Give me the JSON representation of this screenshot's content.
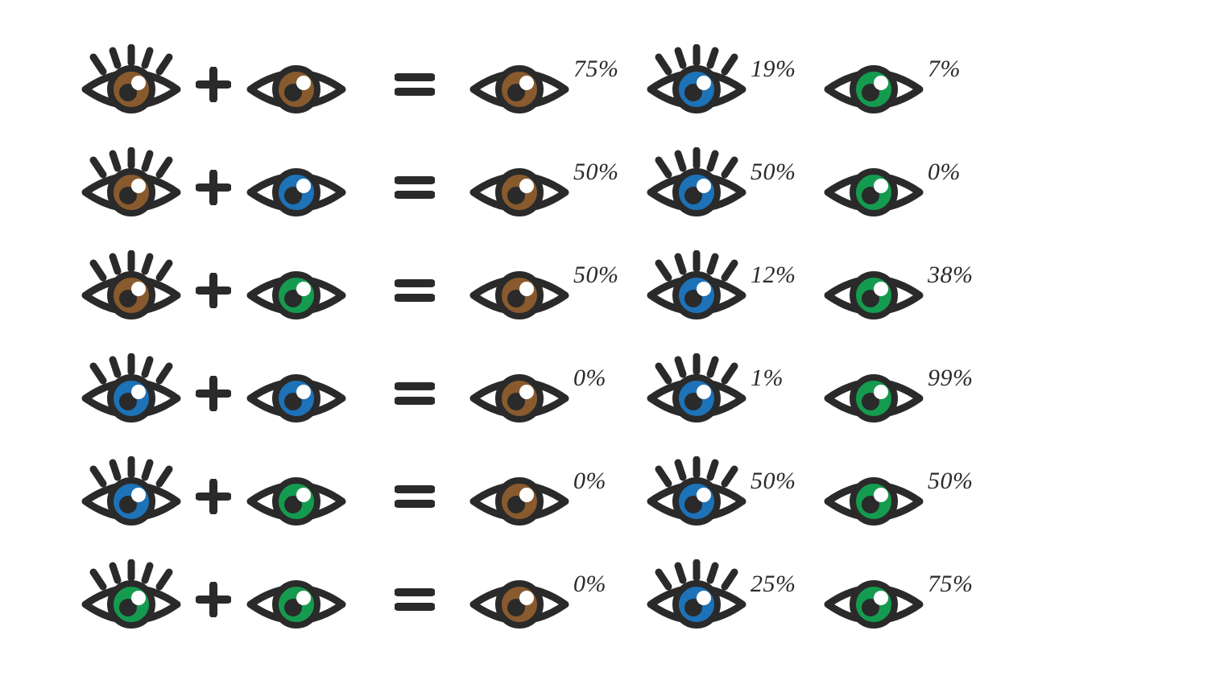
{
  "colors": {
    "outline": "#2a2a2a",
    "brown": "#885a2e",
    "blue": "#1d72b8",
    "green": "#159b4f",
    "white": "#ffffff",
    "text": "#2a2a2a",
    "background": "#ffffff"
  },
  "stroke_width": 9,
  "eye_svg_size": {
    "width": 130,
    "height": 100
  },
  "operator_svg": {
    "plus_size": 44,
    "equals_width": 50,
    "equals_height": 30,
    "stroke": 10
  },
  "percent_font": {
    "size_pt": 30,
    "style": "italic",
    "color": "#2a2a2a"
  },
  "rows": [
    {
      "parent1": {
        "color": "brown",
        "lashes": true
      },
      "parent2": {
        "color": "brown",
        "lashes": false
      },
      "results": [
        {
          "color": "brown",
          "lashes": false,
          "percent": "75%"
        },
        {
          "color": "blue",
          "lashes": true,
          "percent": "19%"
        },
        {
          "color": "green",
          "lashes": false,
          "percent": "7%"
        }
      ]
    },
    {
      "parent1": {
        "color": "brown",
        "lashes": true
      },
      "parent2": {
        "color": "blue",
        "lashes": false
      },
      "results": [
        {
          "color": "brown",
          "lashes": false,
          "percent": "50%"
        },
        {
          "color": "blue",
          "lashes": true,
          "percent": "50%"
        },
        {
          "color": "green",
          "lashes": false,
          "percent": "0%"
        }
      ]
    },
    {
      "parent1": {
        "color": "brown",
        "lashes": true
      },
      "parent2": {
        "color": "green",
        "lashes": false
      },
      "results": [
        {
          "color": "brown",
          "lashes": false,
          "percent": "50%"
        },
        {
          "color": "blue",
          "lashes": true,
          "percent": "12%"
        },
        {
          "color": "green",
          "lashes": false,
          "percent": "38%"
        }
      ]
    },
    {
      "parent1": {
        "color": "blue",
        "lashes": true
      },
      "parent2": {
        "color": "blue",
        "lashes": false
      },
      "results": [
        {
          "color": "brown",
          "lashes": false,
          "percent": "0%"
        },
        {
          "color": "blue",
          "lashes": true,
          "percent": "1%"
        },
        {
          "color": "green",
          "lashes": false,
          "percent": "99%"
        }
      ]
    },
    {
      "parent1": {
        "color": "blue",
        "lashes": true
      },
      "parent2": {
        "color": "green",
        "lashes": false
      },
      "results": [
        {
          "color": "brown",
          "lashes": false,
          "percent": "0%"
        },
        {
          "color": "blue",
          "lashes": true,
          "percent": "50%"
        },
        {
          "color": "green",
          "lashes": false,
          "percent": "50%"
        }
      ]
    },
    {
      "parent1": {
        "color": "green",
        "lashes": true
      },
      "parent2": {
        "color": "green",
        "lashes": false
      },
      "results": [
        {
          "color": "brown",
          "lashes": false,
          "percent": "0%"
        },
        {
          "color": "blue",
          "lashes": true,
          "percent": "25%"
        },
        {
          "color": "green",
          "lashes": false,
          "percent": "75%"
        }
      ]
    }
  ]
}
